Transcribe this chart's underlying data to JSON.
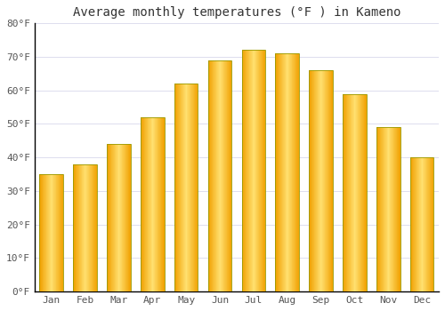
{
  "title": "Average monthly temperatures (°F ) in Kameno",
  "months": [
    "Jan",
    "Feb",
    "Mar",
    "Apr",
    "May",
    "Jun",
    "Jul",
    "Aug",
    "Sep",
    "Oct",
    "Nov",
    "Dec"
  ],
  "values": [
    35,
    38,
    44,
    52,
    62,
    69,
    72,
    71,
    66,
    59,
    49,
    40
  ],
  "bar_color_center": "#FFE070",
  "bar_color_edge": "#F0A000",
  "bar_border_color": "#888800",
  "background_color": "#FFFFFF",
  "ylim": [
    0,
    80
  ],
  "yticks": [
    0,
    10,
    20,
    30,
    40,
    50,
    60,
    70,
    80
  ],
  "ytick_labels": [
    "0°F",
    "10°F",
    "20°F",
    "30°F",
    "40°F",
    "50°F",
    "60°F",
    "70°F",
    "80°F"
  ],
  "title_fontsize": 10,
  "tick_fontsize": 8,
  "grid_color": "#DDDDEE",
  "axis_color": "#000000",
  "figsize": [
    5.0,
    3.5
  ],
  "dpi": 100
}
